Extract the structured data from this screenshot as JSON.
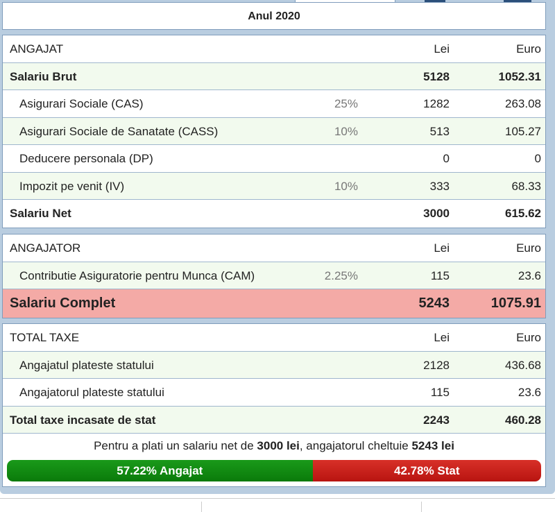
{
  "year_title": "Anul 2020",
  "angajat": {
    "header": {
      "label": "ANGAJAT",
      "lei": "Lei",
      "euro": "Euro"
    },
    "rows": [
      {
        "label": "Salariu Brut",
        "pct": "",
        "lei": "5128",
        "euro": "1052.31"
      },
      {
        "label": "Asigurari Sociale (CAS)",
        "pct": "25%",
        "lei": "1282",
        "euro": "263.08"
      },
      {
        "label": "Asigurari Sociale de Sanatate (CASS)",
        "pct": "10%",
        "lei": "513",
        "euro": "105.27"
      },
      {
        "label": "Deducere personala (DP)",
        "pct": "",
        "lei": "0",
        "euro": "0"
      },
      {
        "label": "Impozit pe venit (IV)",
        "pct": "10%",
        "lei": "333",
        "euro": "68.33"
      },
      {
        "label": "Salariu Net",
        "pct": "",
        "lei": "3000",
        "euro": "615.62"
      }
    ]
  },
  "angajator": {
    "header": {
      "label": "ANGAJATOR",
      "lei": "Lei",
      "euro": "Euro"
    },
    "rows": [
      {
        "label": "Contributie Asiguratorie pentru Munca (CAM)",
        "pct": "2.25%",
        "lei": "115",
        "euro": "23.6"
      }
    ],
    "complete": {
      "label": "Salariu Complet",
      "lei": "5243",
      "euro": "1075.91"
    }
  },
  "taxe": {
    "header": {
      "label": "TOTAL TAXE",
      "lei": "Lei",
      "euro": "Euro"
    },
    "rows": [
      {
        "label": "Angajatul plateste statului",
        "lei": "2128",
        "euro": "436.68"
      },
      {
        "label": "Angajatorul plateste statului",
        "lei": "115",
        "euro": "23.6"
      },
      {
        "label": "Total taxe incasate de stat",
        "lei": "2243",
        "euro": "460.28"
      }
    ]
  },
  "summary": {
    "p1": "Pentru a plati un salariu net de ",
    "net": "3000 lei",
    "p2": ", angajatorul cheltuie ",
    "total": "5243 lei"
  },
  "split": {
    "angajat_pct": 57.22,
    "angajat_label": "57.22% Angajat",
    "stat_pct": 42.78,
    "stat_label": "42.78% Stat",
    "angajat_color": "#0a8a0a",
    "stat_color": "#c8201a"
  }
}
